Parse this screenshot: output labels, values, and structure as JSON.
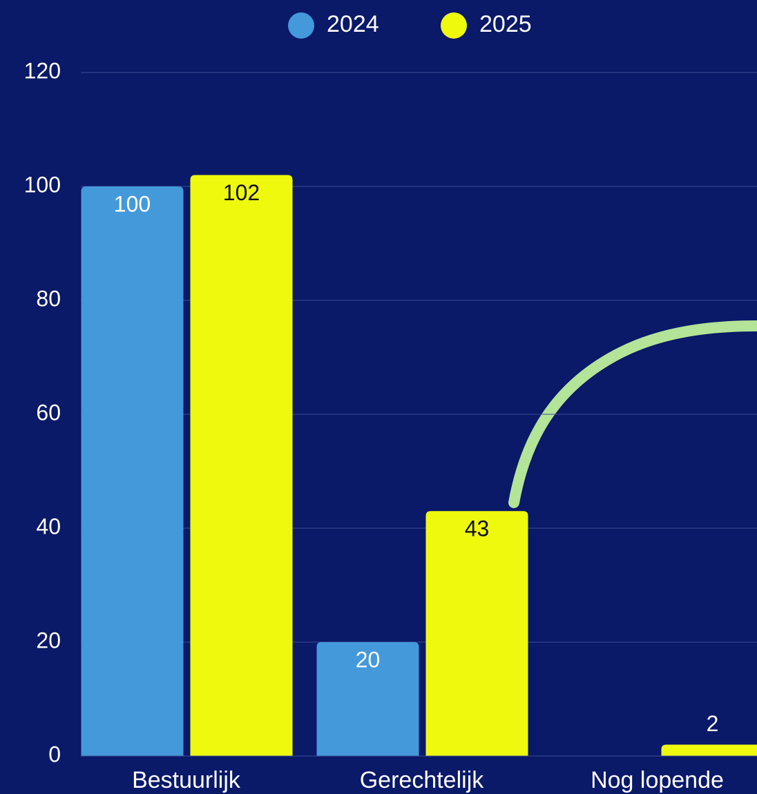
{
  "chart_data": {
    "type": "bar",
    "categories": [
      "Bestuurlijk",
      "Gerechtelijk",
      "Nog lopende"
    ],
    "series": [
      {
        "name": "2024",
        "color": "#4499db",
        "values": [
          100,
          20,
          null
        ]
      },
      {
        "name": "2025",
        "color": "#eef90e",
        "values": [
          102,
          43,
          2
        ]
      }
    ],
    "ylim": [
      0,
      120
    ],
    "yticks": [
      0,
      20,
      40,
      60,
      80,
      100,
      120
    ],
    "grid": true,
    "legend": "top"
  }
}
